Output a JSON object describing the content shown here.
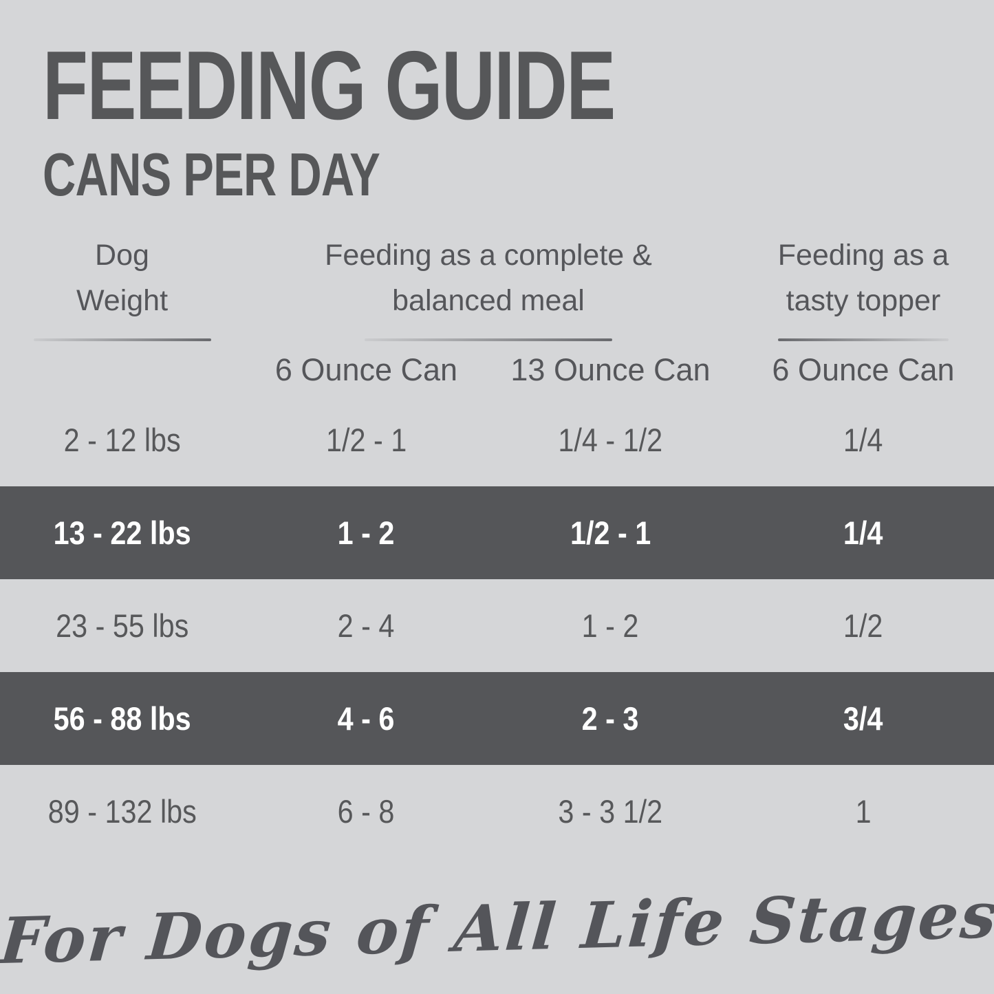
{
  "colors": {
    "background": "#d5d6d8",
    "text": "#57585a",
    "highlight_row_background": "#555659",
    "highlight_row_text": "#ffffff"
  },
  "title": {
    "main": "FEEDING GUIDE",
    "subtitle": "CANS PER DAY"
  },
  "table": {
    "column_groups": [
      {
        "line1": "Dog",
        "line2": "Weight"
      },
      {
        "line1": "Feeding as a complete &",
        "line2": "balanced meal"
      },
      {
        "line1": "Feeding as a",
        "line2": "tasty topper"
      }
    ],
    "sub_headers": {
      "complete_6oz": "6 Ounce Can",
      "complete_13oz": "13 Ounce Can",
      "topper_6oz": "6 Ounce Can"
    },
    "rows": [
      {
        "weight": "2 - 12 lbs",
        "complete_6oz": "1/2 - 1",
        "complete_13oz": "1/4 - 1/2",
        "topper_6oz": "1/4",
        "highlight": false
      },
      {
        "weight": "13 - 22 lbs",
        "complete_6oz": "1 - 2",
        "complete_13oz": "1/2 - 1",
        "topper_6oz": "1/4",
        "highlight": true
      },
      {
        "weight": "23 - 55 lbs",
        "complete_6oz": "2 - 4",
        "complete_13oz": "1 - 2",
        "topper_6oz": "1/2",
        "highlight": false
      },
      {
        "weight": "56 - 88 lbs",
        "complete_6oz": "4 - 6",
        "complete_13oz": "2 - 3",
        "topper_6oz": "3/4",
        "highlight": true
      },
      {
        "weight": "89 - 132 lbs",
        "complete_6oz": "6 - 8",
        "complete_13oz": "3 - 3 1/2",
        "topper_6oz": "1",
        "highlight": false
      }
    ]
  },
  "footer": {
    "tagline": "For Dogs of All Life Stages"
  }
}
